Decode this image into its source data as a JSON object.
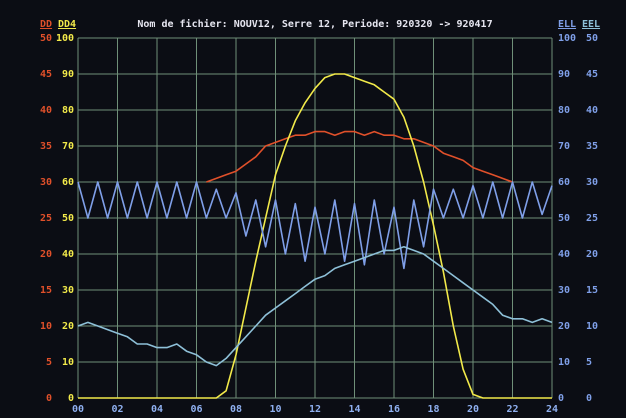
{
  "chart_data": {
    "type": "line",
    "title": "Nom de fichier: NOUV12, Serre 12, Periode: 920320 -> 920417",
    "x": [
      0,
      0.5,
      1,
      1.5,
      2,
      2.5,
      3,
      3.5,
      4,
      4.5,
      5,
      5.5,
      6,
      6.5,
      7,
      7.5,
      8,
      8.5,
      9,
      9.5,
      10,
      10.5,
      11,
      11.5,
      12,
      12.5,
      13,
      13.5,
      14,
      14.5,
      15,
      15.5,
      16,
      16.5,
      17,
      17.5,
      18,
      18.5,
      19,
      19.5,
      20,
      20.5,
      21,
      21.5,
      22,
      22.5,
      23,
      23.5,
      24
    ],
    "xlim": [
      0,
      24
    ],
    "xticks": [
      {
        "value": 0,
        "label": "00"
      },
      {
        "value": 2,
        "label": "02"
      },
      {
        "value": 4,
        "label": "04"
      },
      {
        "value": 6,
        "label": "06"
      },
      {
        "value": 8,
        "label": "08"
      },
      10,
      12,
      14,
      16,
      18,
      20,
      22,
      24
    ],
    "ylim": [
      0,
      100
    ],
    "yticks": [
      0,
      10,
      20,
      30,
      40,
      50,
      60,
      70,
      80,
      90,
      100
    ],
    "y2lim": [
      0,
      50
    ],
    "y2ticks": [
      0,
      5,
      10,
      15,
      20,
      25,
      30,
      35,
      40,
      45,
      50
    ],
    "y3lim": [
      0,
      100
    ],
    "y3ticks": [
      0,
      10,
      20,
      30,
      40,
      50,
      60,
      70,
      80,
      90,
      100
    ],
    "y4lim": [
      0,
      50
    ],
    "y4ticks": [
      0,
      5,
      10,
      15,
      20,
      25,
      30,
      35,
      40,
      45,
      50
    ],
    "grid": true,
    "series": [
      {
        "name": "DD",
        "color": "#e0502a",
        "axis": "y2",
        "values": [
          null,
          null,
          null,
          null,
          null,
          null,
          null,
          null,
          null,
          null,
          null,
          null,
          null,
          30,
          30.5,
          31,
          31.5,
          32.5,
          33.5,
          35,
          35.5,
          36,
          36.5,
          36.5,
          37,
          37,
          36.5,
          37,
          37,
          36.5,
          37,
          36.5,
          36.5,
          36,
          36,
          35.5,
          35,
          34,
          33.5,
          33,
          32,
          31.5,
          31,
          30.5,
          30,
          null,
          null,
          null,
          null
        ]
      },
      {
        "name": "DD4",
        "color": "#f2ea4a",
        "values": [
          0,
          0,
          0,
          0,
          0,
          0,
          0,
          0,
          0,
          0,
          0,
          0,
          0,
          0,
          0,
          2,
          12,
          25,
          38,
          50,
          62,
          70,
          77,
          82,
          86,
          89,
          90,
          90,
          89,
          88,
          87,
          85,
          83,
          78,
          70,
          60,
          48,
          35,
          20,
          8,
          1,
          0,
          0,
          0,
          0,
          0,
          0,
          0,
          0
        ]
      },
      {
        "name": "ELL",
        "color": "#7f9fe8",
        "values": [
          60,
          50,
          60,
          50,
          60,
          50,
          60,
          50,
          60,
          50,
          60,
          50,
          60,
          50,
          58,
          50,
          57,
          45,
          55,
          42,
          55,
          40,
          54,
          38,
          53,
          40,
          55,
          38,
          54,
          37,
          55,
          40,
          53,
          36,
          55,
          42,
          58,
          50,
          58,
          50,
          59,
          50,
          60,
          50,
          60,
          50,
          60,
          51,
          59
        ]
      },
      {
        "name": "EEL",
        "color": "#8ec0d8",
        "values": [
          20,
          21,
          20,
          19,
          18,
          17,
          15,
          15,
          14,
          14,
          15,
          13,
          12,
          10,
          9,
          11,
          14,
          17,
          20,
          23,
          25,
          27,
          29,
          31,
          33,
          34,
          36,
          37,
          38,
          39,
          40,
          41,
          41,
          42,
          41,
          40,
          38,
          36,
          34,
          32,
          30,
          28,
          26,
          23,
          22,
          22,
          21,
          22,
          21
        ]
      }
    ]
  }
}
